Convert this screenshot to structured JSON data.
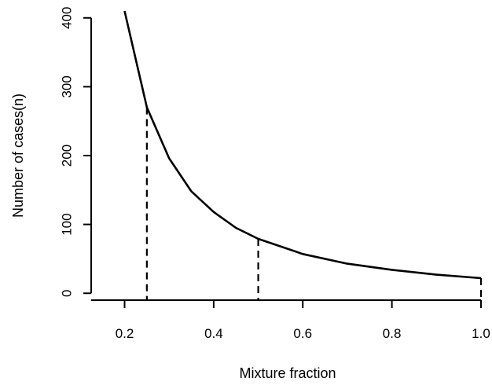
{
  "chart_data": {
    "type": "line",
    "title": "",
    "xlabel": "Mixture fraction",
    "ylabel": "Number of cases(n)",
    "xlim": [
      0.125,
      1.0
    ],
    "ylim": [
      -10,
      410
    ],
    "xticks": [
      0.2,
      0.4,
      0.6,
      0.8,
      1.0
    ],
    "xtick_labels": [
      "0.2",
      "0.4",
      "0.6",
      "0.8",
      "1.0"
    ],
    "yticks": [
      0,
      100,
      200,
      300,
      400
    ],
    "ytick_labels": [
      "0",
      "100",
      "200",
      "300",
      "400"
    ],
    "grid": false,
    "legend": "none",
    "series": [
      {
        "x": [
          0.2,
          0.25,
          0.3,
          0.35,
          0.4,
          0.45,
          0.5,
          0.6,
          0.7,
          0.8,
          0.9,
          1.0
        ],
        "y": [
          420,
          270,
          196,
          148,
          118,
          95,
          79,
          57,
          43,
          34,
          27,
          22
        ]
      }
    ],
    "dashed_drop_lines": [
      {
        "x": 0.25,
        "y": 270
      },
      {
        "x": 0.5,
        "y": 79
      },
      {
        "x": 1.0,
        "y": 22
      }
    ]
  }
}
